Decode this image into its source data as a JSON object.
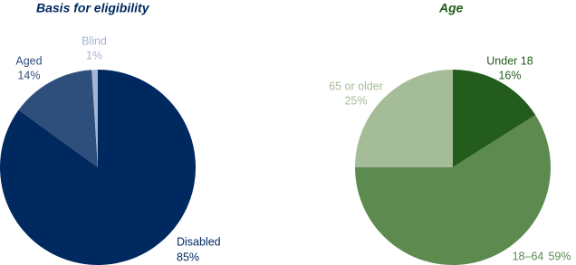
{
  "chart_data": [
    {
      "type": "pie",
      "title": "Basis for eligibility",
      "categories": [
        "Disabled",
        "Aged",
        "Blind"
      ],
      "values": [
        85,
        14,
        1
      ],
      "value_labels": [
        "85%",
        "14%",
        "1%"
      ],
      "colors": [
        "#002960",
        "#2e4f7c",
        "#a6b3d3"
      ],
      "title_color": "#002960"
    },
    {
      "type": "pie",
      "title": "Age",
      "categories": [
        "Under 18",
        "18–64",
        "65 or older"
      ],
      "values": [
        16,
        59,
        25
      ],
      "value_labels": [
        "16%",
        "59%",
        "25%"
      ],
      "colors": [
        "#245c1e",
        "#5c8a4f",
        "#a5bc98"
      ],
      "title_color": "#245c1e"
    }
  ]
}
